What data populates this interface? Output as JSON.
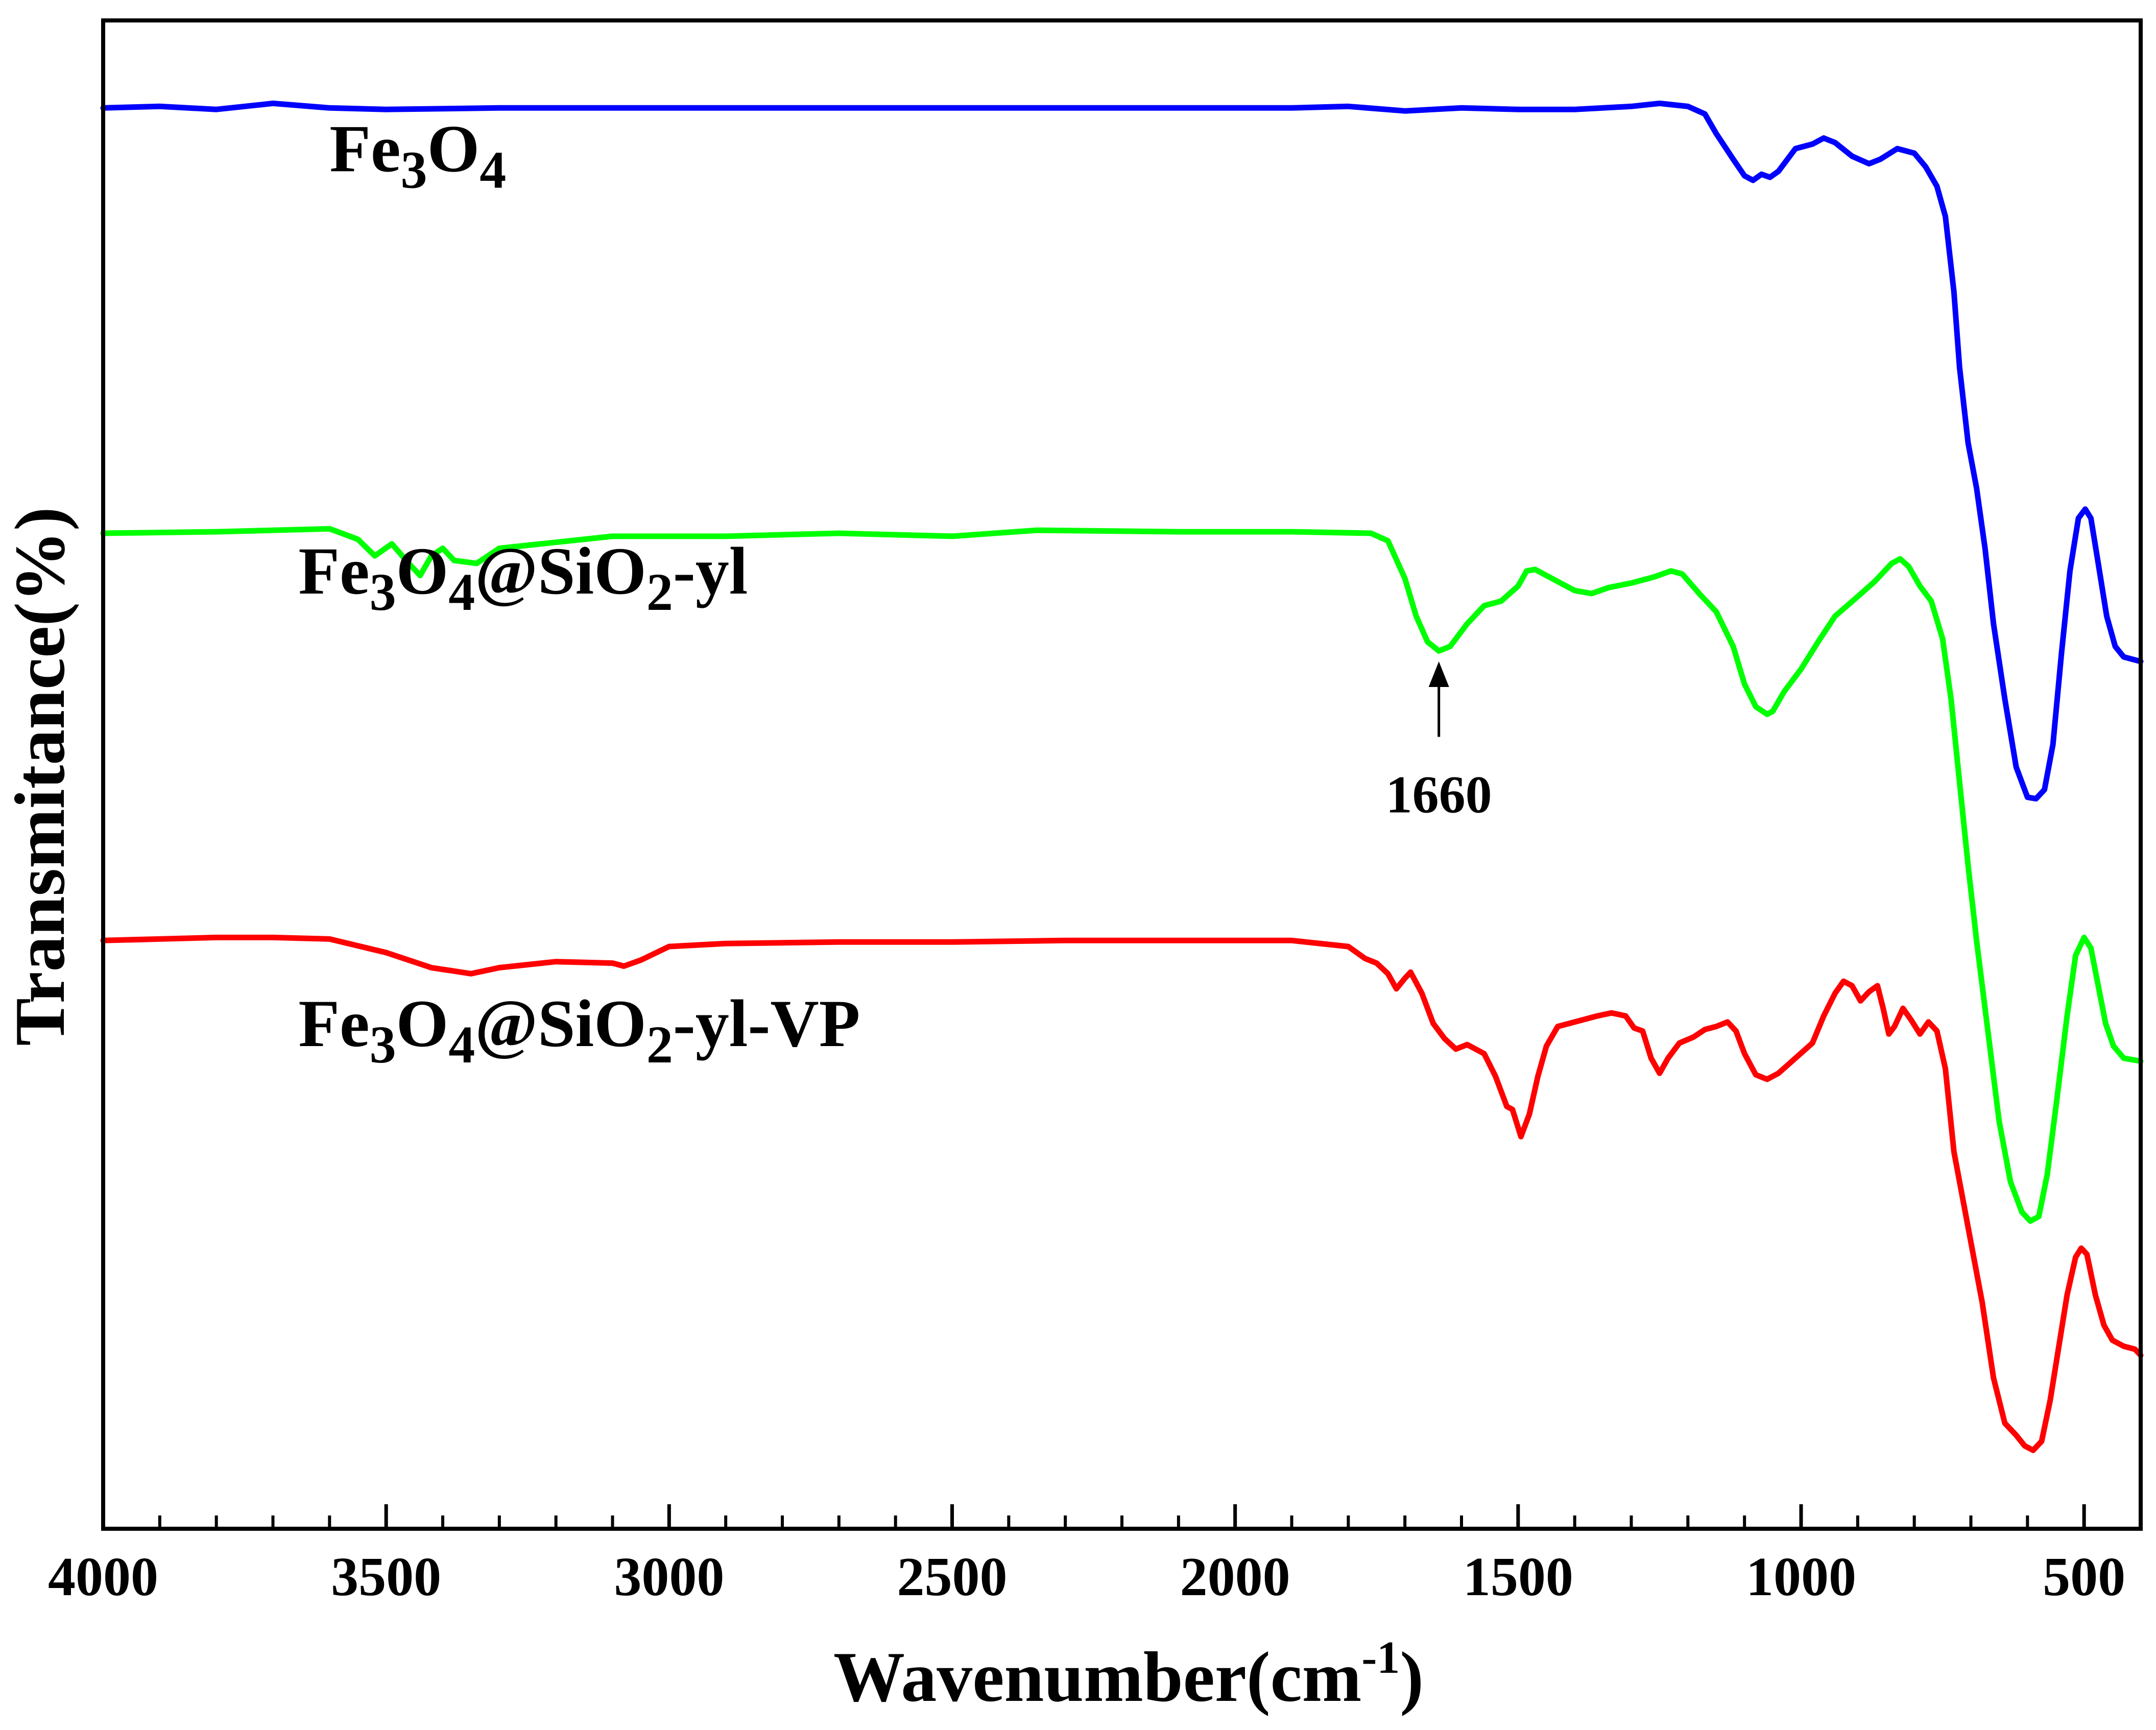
{
  "chart_data": {
    "type": "line",
    "title": "",
    "xlabel": "Wavenumber(cm",
    "xlabel_sup": "-1",
    "xlabel_tail": ")",
    "ylabel": "Transmitance(%)",
    "xlim": [
      4000,
      400
    ],
    "x_reversed": true,
    "ylim": [
      0,
      100
    ],
    "y_ticks_labeled": false,
    "x_ticks": [
      {
        "value": 4000,
        "label": "4000"
      },
      {
        "value": 3500,
        "label": "3500"
      },
      {
        "value": 3000,
        "label": "3000"
      },
      {
        "value": 2500,
        "label": "2500"
      },
      {
        "value": 2000,
        "label": "2000"
      },
      {
        "value": 1500,
        "label": "1500"
      },
      {
        "value": 1000,
        "label": "1000"
      },
      {
        "value": 500,
        "label": "500"
      }
    ],
    "series": [
      {
        "name": "Fe3O4",
        "label_parts": [
          {
            "t": "Fe"
          },
          {
            "t": "3",
            "sub": true
          },
          {
            "t": "O"
          },
          {
            "t": "4",
            "sub": true
          }
        ],
        "label_anchor": {
          "x": 3600,
          "y": 90
        },
        "color": "#0000ff",
        "points": [
          [
            4000,
            94.2
          ],
          [
            3900,
            94.3
          ],
          [
            3800,
            94.1
          ],
          [
            3700,
            94.5
          ],
          [
            3600,
            94.2
          ],
          [
            3500,
            94.1
          ],
          [
            3300,
            94.2
          ],
          [
            3100,
            94.2
          ],
          [
            2900,
            94.2
          ],
          [
            2700,
            94.2
          ],
          [
            2500,
            94.2
          ],
          [
            2300,
            94.2
          ],
          [
            2100,
            94.2
          ],
          [
            1900,
            94.2
          ],
          [
            1800,
            94.3
          ],
          [
            1700,
            94.0
          ],
          [
            1600,
            94.2
          ],
          [
            1500,
            94.1
          ],
          [
            1400,
            94.1
          ],
          [
            1300,
            94.3
          ],
          [
            1250,
            94.5
          ],
          [
            1200,
            94.3
          ],
          [
            1170,
            93.8
          ],
          [
            1150,
            92.5
          ],
          [
            1120,
            90.8
          ],
          [
            1100,
            89.7
          ],
          [
            1085,
            89.4
          ],
          [
            1070,
            89.8
          ],
          [
            1055,
            89.6
          ],
          [
            1040,
            90.0
          ],
          [
            1010,
            91.5
          ],
          [
            980,
            91.8
          ],
          [
            960,
            92.2
          ],
          [
            940,
            91.9
          ],
          [
            910,
            91.0
          ],
          [
            880,
            90.5
          ],
          [
            860,
            90.8
          ],
          [
            830,
            91.5
          ],
          [
            800,
            91.2
          ],
          [
            780,
            90.3
          ],
          [
            760,
            89.0
          ],
          [
            745,
            87.0
          ],
          [
            730,
            82.0
          ],
          [
            720,
            77.0
          ],
          [
            705,
            72.0
          ],
          [
            690,
            69.0
          ],
          [
            675,
            65.0
          ],
          [
            660,
            60.0
          ],
          [
            640,
            55.0
          ],
          [
            620,
            50.5
          ],
          [
            600,
            48.5
          ],
          [
            585,
            48.4
          ],
          [
            570,
            49.0
          ],
          [
            555,
            52.0
          ],
          [
            540,
            58.0
          ],
          [
            525,
            63.5
          ],
          [
            510,
            67.0
          ],
          [
            498,
            67.6
          ],
          [
            488,
            67.0
          ],
          [
            475,
            64.0
          ],
          [
            460,
            60.5
          ],
          [
            445,
            58.5
          ],
          [
            430,
            57.8
          ],
          [
            400,
            57.5
          ]
        ]
      },
      {
        "name": "Fe3O4@SiO2-yl",
        "label_parts": [
          {
            "t": "Fe"
          },
          {
            "t": "3",
            "sub": true
          },
          {
            "t": "O"
          },
          {
            "t": "4",
            "sub": true
          },
          {
            "t": "@SiO"
          },
          {
            "t": "2",
            "sub": true
          },
          {
            "t": "-yl"
          }
        ],
        "label_anchor": {
          "x": 3655,
          "y": 62
        },
        "color": "#00ff00",
        "points": [
          [
            4000,
            66.0
          ],
          [
            3800,
            66.1
          ],
          [
            3600,
            66.3
          ],
          [
            3550,
            65.6
          ],
          [
            3520,
            64.5
          ],
          [
            3490,
            65.3
          ],
          [
            3460,
            64.0
          ],
          [
            3440,
            63.2
          ],
          [
            3420,
            64.5
          ],
          [
            3400,
            65.0
          ],
          [
            3380,
            64.2
          ],
          [
            3340,
            64.0
          ],
          [
            3300,
            65.0
          ],
          [
            3200,
            65.4
          ],
          [
            3100,
            65.8
          ],
          [
            2900,
            65.8
          ],
          [
            2700,
            66.0
          ],
          [
            2500,
            65.8
          ],
          [
            2350,
            66.2
          ],
          [
            2100,
            66.1
          ],
          [
            1900,
            66.1
          ],
          [
            1760,
            66.0
          ],
          [
            1730,
            65.5
          ],
          [
            1700,
            63.0
          ],
          [
            1680,
            60.5
          ],
          [
            1660,
            58.8
          ],
          [
            1640,
            58.2
          ],
          [
            1620,
            58.5
          ],
          [
            1590,
            60.0
          ],
          [
            1560,
            61.2
          ],
          [
            1530,
            61.5
          ],
          [
            1500,
            62.5
          ],
          [
            1485,
            63.5
          ],
          [
            1470,
            63.6
          ],
          [
            1440,
            63.0
          ],
          [
            1400,
            62.2
          ],
          [
            1370,
            62.0
          ],
          [
            1340,
            62.4
          ],
          [
            1300,
            62.7
          ],
          [
            1260,
            63.1
          ],
          [
            1230,
            63.5
          ],
          [
            1210,
            63.3
          ],
          [
            1180,
            62.0
          ],
          [
            1150,
            60.8
          ],
          [
            1120,
            58.5
          ],
          [
            1100,
            56.0
          ],
          [
            1080,
            54.5
          ],
          [
            1060,
            54.0
          ],
          [
            1050,
            54.2
          ],
          [
            1030,
            55.5
          ],
          [
            1000,
            57.0
          ],
          [
            970,
            58.8
          ],
          [
            940,
            60.5
          ],
          [
            900,
            61.8
          ],
          [
            870,
            62.8
          ],
          [
            840,
            64.0
          ],
          [
            825,
            64.3
          ],
          [
            810,
            63.8
          ],
          [
            790,
            62.5
          ],
          [
            770,
            61.5
          ],
          [
            750,
            59.0
          ],
          [
            735,
            55.0
          ],
          [
            720,
            49.5
          ],
          [
            705,
            44.0
          ],
          [
            690,
            39.0
          ],
          [
            670,
            33.0
          ],
          [
            650,
            27.0
          ],
          [
            630,
            23.0
          ],
          [
            610,
            21.0
          ],
          [
            595,
            20.4
          ],
          [
            580,
            20.7
          ],
          [
            565,
            23.5
          ],
          [
            548,
            28.5
          ],
          [
            530,
            34.0
          ],
          [
            515,
            38.0
          ],
          [
            500,
            39.2
          ],
          [
            488,
            38.5
          ],
          [
            475,
            36.0
          ],
          [
            462,
            33.5
          ],
          [
            448,
            32.0
          ],
          [
            430,
            31.2
          ],
          [
            400,
            31.0
          ]
        ]
      },
      {
        "name": "Fe3O4@SiO2-yl-VP",
        "label_parts": [
          {
            "t": "Fe"
          },
          {
            "t": "3",
            "sub": true
          },
          {
            "t": "O"
          },
          {
            "t": "4",
            "sub": true
          },
          {
            "t": "@SiO"
          },
          {
            "t": "2",
            "sub": true
          },
          {
            "t": "-yl-VP"
          }
        ],
        "label_anchor": {
          "x": 3655,
          "y": 32
        },
        "color": "#ff0000",
        "points": [
          [
            4000,
            39.0
          ],
          [
            3900,
            39.1
          ],
          [
            3800,
            39.2
          ],
          [
            3700,
            39.2
          ],
          [
            3600,
            39.1
          ],
          [
            3500,
            38.2
          ],
          [
            3420,
            37.2
          ],
          [
            3350,
            36.8
          ],
          [
            3300,
            37.2
          ],
          [
            3200,
            37.6
          ],
          [
            3100,
            37.5
          ],
          [
            3080,
            37.3
          ],
          [
            3050,
            37.7
          ],
          [
            3000,
            38.6
          ],
          [
            2900,
            38.8
          ],
          [
            2700,
            38.9
          ],
          [
            2500,
            38.9
          ],
          [
            2300,
            39.0
          ],
          [
            2100,
            39.0
          ],
          [
            1900,
            39.0
          ],
          [
            1800,
            38.6
          ],
          [
            1770,
            37.8
          ],
          [
            1750,
            37.5
          ],
          [
            1730,
            36.8
          ],
          [
            1715,
            35.8
          ],
          [
            1700,
            36.5
          ],
          [
            1690,
            36.9
          ],
          [
            1670,
            35.5
          ],
          [
            1650,
            33.5
          ],
          [
            1630,
            32.5
          ],
          [
            1610,
            31.8
          ],
          [
            1590,
            32.1
          ],
          [
            1560,
            31.5
          ],
          [
            1540,
            30.0
          ],
          [
            1520,
            28.0
          ],
          [
            1510,
            27.8
          ],
          [
            1495,
            26.0
          ],
          [
            1480,
            27.5
          ],
          [
            1465,
            30.0
          ],
          [
            1450,
            32.0
          ],
          [
            1430,
            33.3
          ],
          [
            1400,
            33.6
          ],
          [
            1380,
            33.8
          ],
          [
            1360,
            34.0
          ],
          [
            1335,
            34.2
          ],
          [
            1310,
            34.0
          ],
          [
            1295,
            33.2
          ],
          [
            1280,
            33.0
          ],
          [
            1265,
            31.2
          ],
          [
            1250,
            30.2
          ],
          [
            1235,
            31.2
          ],
          [
            1215,
            32.2
          ],
          [
            1190,
            32.6
          ],
          [
            1170,
            33.1
          ],
          [
            1150,
            33.3
          ],
          [
            1130,
            33.6
          ],
          [
            1115,
            33.0
          ],
          [
            1100,
            31.5
          ],
          [
            1080,
            30.1
          ],
          [
            1060,
            29.8
          ],
          [
            1040,
            30.2
          ],
          [
            1010,
            31.2
          ],
          [
            980,
            32.2
          ],
          [
            960,
            34.0
          ],
          [
            940,
            35.5
          ],
          [
            925,
            36.3
          ],
          [
            910,
            36.0
          ],
          [
            895,
            35.0
          ],
          [
            880,
            35.6
          ],
          [
            865,
            36.0
          ],
          [
            855,
            34.5
          ],
          [
            845,
            32.8
          ],
          [
            835,
            33.3
          ],
          [
            820,
            34.5
          ],
          [
            805,
            33.7
          ],
          [
            790,
            32.8
          ],
          [
            775,
            33.6
          ],
          [
            760,
            33.0
          ],
          [
            745,
            30.5
          ],
          [
            730,
            25.0
          ],
          [
            715,
            22.0
          ],
          [
            700,
            19.0
          ],
          [
            680,
            15.0
          ],
          [
            660,
            10.0
          ],
          [
            640,
            7.0
          ],
          [
            620,
            6.2
          ],
          [
            605,
            5.5
          ],
          [
            590,
            5.2
          ],
          [
            575,
            5.8
          ],
          [
            560,
            8.5
          ],
          [
            545,
            12.0
          ],
          [
            530,
            15.5
          ],
          [
            515,
            18.0
          ],
          [
            505,
            18.6
          ],
          [
            495,
            18.2
          ],
          [
            480,
            15.5
          ],
          [
            465,
            13.5
          ],
          [
            450,
            12.5
          ],
          [
            430,
            12.1
          ],
          [
            410,
            11.9
          ],
          [
            400,
            11.5
          ]
        ]
      }
    ],
    "annotations": [
      {
        "text": "1660",
        "x": 1640,
        "arrow_tip_y": 57.5,
        "arrow_base_y": 52.5,
        "text_y": 47.5,
        "arrow": "up"
      }
    ]
  }
}
